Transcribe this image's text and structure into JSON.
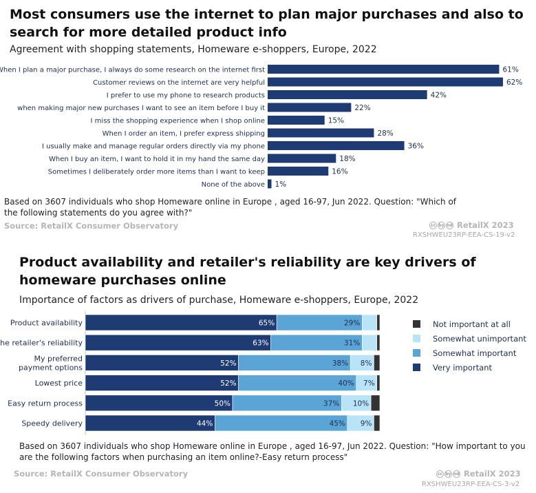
{
  "chart_data": [
    {
      "type": "bar",
      "orientation": "horizontal",
      "title": "Most consumers use the internet to plan major purchases and also to search for more detailed product info",
      "subtitle": "Agreement with shopping statements, Homeware e-shoppers, Europe, 2022",
      "categories": [
        "When I plan a major purchase, I always do some research on the internet first",
        "Customer reviews on the internet are very helpful",
        "I prefer to use my phone to research products",
        "when making major new purchases I want to see an item before I buy it",
        "I miss the shopping experience when I shop online",
        "When I order an item, I prefer express shipping",
        "I usually make and manage regular orders directly via my phone",
        "When I buy an item, I want to hold it in my hand the same day",
        "Sometimes I deliberately order more items than I want to keep",
        "None of the above"
      ],
      "values": [
        61,
        62,
        42,
        22,
        15,
        28,
        36,
        18,
        16,
        1
      ],
      "value_labels": [
        "61%",
        "62%",
        "42%",
        "22%",
        "15%",
        "28%",
        "36%",
        "18%",
        "16%",
        "1%"
      ],
      "xlim": [
        0,
        62
      ],
      "color": "#1f3b73",
      "note": "Based on 3607 individuals who shop Homeware online in Europe , aged 16-97, Jun 2022. Question: \"Which of the following statements do you agree with?\"",
      "source": "Source: RetailX Consumer Observatory",
      "brand": "RetailX 2023",
      "code": "RXSHWEU23RP-EEA-CS-19-v2"
    },
    {
      "type": "bar",
      "orientation": "horizontal",
      "stacked": true,
      "title": "Product availability and retailer's reliability are key drivers of homeware purchases online",
      "subtitle": "Importance of factors as drivers of purchase, Homeware  e-shoppers, Europe, 2022",
      "categories": [
        [
          "Product availability"
        ],
        [
          "The retailer's reliability"
        ],
        [
          "My preferred",
          "payment options"
        ],
        [
          "Lowest price"
        ],
        [
          "Easy return process"
        ],
        [
          "Speedy delivery"
        ]
      ],
      "series": [
        {
          "name": "Very important",
          "color": "#1f3b73",
          "values": [
            65,
            63,
            52,
            52,
            50,
            44
          ],
          "labels": [
            "65%",
            "63%",
            "52%",
            "52%",
            "50%",
            "44%"
          ]
        },
        {
          "name": "Somewhat important",
          "color": "#5aa5d6",
          "values": [
            29,
            31,
            38,
            40,
            37,
            45
          ],
          "labels": [
            "29%",
            "31%",
            "38%",
            "40%",
            "37%",
            "45%"
          ]
        },
        {
          "name": "Somewhat unimportant",
          "color": "#b9e4f7",
          "values": [
            5,
            5,
            8,
            7,
            10,
            9
          ],
          "labels": [
            "",
            "",
            "8%",
            "7%",
            "10%",
            "9%"
          ]
        },
        {
          "name": "Not important at all",
          "color": "#333333",
          "values": [
            1,
            1,
            2,
            1,
            3,
            2
          ],
          "labels": [
            "",
            "",
            "",
            "",
            "",
            ""
          ]
        }
      ],
      "legend_order": [
        "Not important at all",
        "Somewhat unimportant",
        "Somewhat important",
        "Very important"
      ],
      "legend_position": "right",
      "note": "Based on 3607 individuals who shop Homeware online in Europe , aged 16-97, Jun 2022. Question: \"How important to you are the following factors when purchasing an item online?-Easy return process\"",
      "source": "Source: RetailX Consumer Observatory",
      "brand": "RetailX 2023",
      "code": "RXSHWEU23RP-EEA-CS-3-v2"
    }
  ],
  "cc_icons": [
    "cc",
    "by",
    "nd"
  ]
}
